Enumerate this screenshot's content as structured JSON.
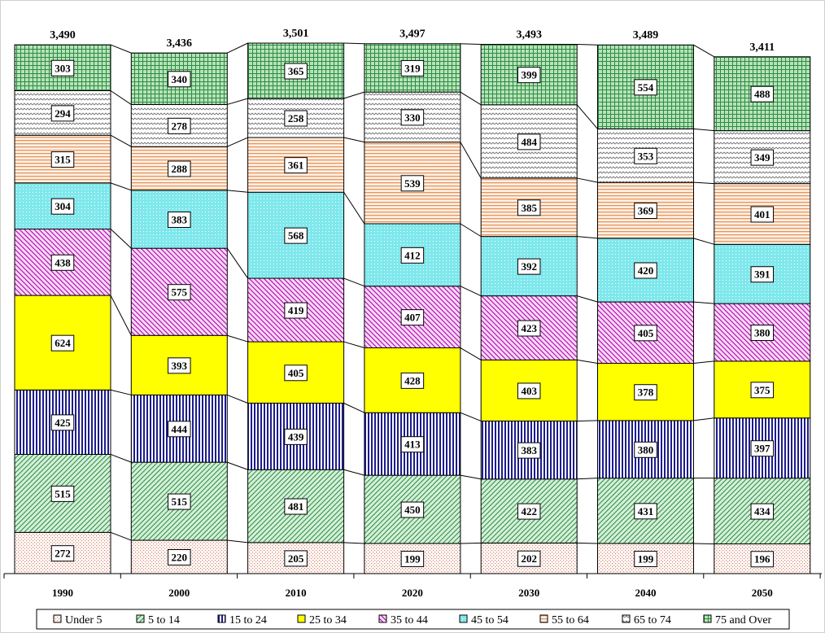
{
  "chart_data": {
    "type": "bar",
    "stacked": true,
    "title": "",
    "xlabel": "",
    "ylabel": "",
    "categories": [
      "1990",
      "2000",
      "2010",
      "2020",
      "2030",
      "2040",
      "2050"
    ],
    "totals": [
      "3,490",
      "3,436",
      "3,501",
      "3,497",
      "3,493",
      "3,489",
      "3,411"
    ],
    "series": [
      {
        "name": "Under 5",
        "values": [
          272,
          220,
          205,
          199,
          202,
          199,
          196
        ]
      },
      {
        "name": "5 to 14",
        "values": [
          515,
          515,
          481,
          450,
          422,
          431,
          434
        ]
      },
      {
        "name": "15 to 24",
        "values": [
          425,
          444,
          439,
          413,
          383,
          380,
          397
        ]
      },
      {
        "name": "25 to 34",
        "values": [
          624,
          393,
          405,
          428,
          403,
          378,
          375
        ]
      },
      {
        "name": "35 to 44",
        "values": [
          438,
          575,
          419,
          407,
          423,
          405,
          380
        ]
      },
      {
        "name": "45 to 54",
        "values": [
          304,
          383,
          568,
          412,
          392,
          420,
          391
        ]
      },
      {
        "name": "55 to 64",
        "values": [
          315,
          288,
          361,
          539,
          385,
          369,
          401
        ]
      },
      {
        "name": "65 to 74",
        "values": [
          294,
          278,
          258,
          330,
          484,
          353,
          349
        ]
      },
      {
        "name": "75 and Over",
        "values": [
          303,
          340,
          365,
          319,
          399,
          554,
          488
        ]
      }
    ],
    "legend_position": "bottom",
    "grid": false
  },
  "colors": {
    "Under 5": "#f3d9cf",
    "5 to 14": "#cfeed5",
    "15 to 24": "#1c1c8c",
    "25 to 34": "#ffff00",
    "35 to 44": "#c000c0",
    "45 to 54": "#7fe8ec",
    "55 to 64": "#f0a070",
    "65 to 74": "#7a7a7a",
    "75 and Over": "#2e9a3e"
  }
}
